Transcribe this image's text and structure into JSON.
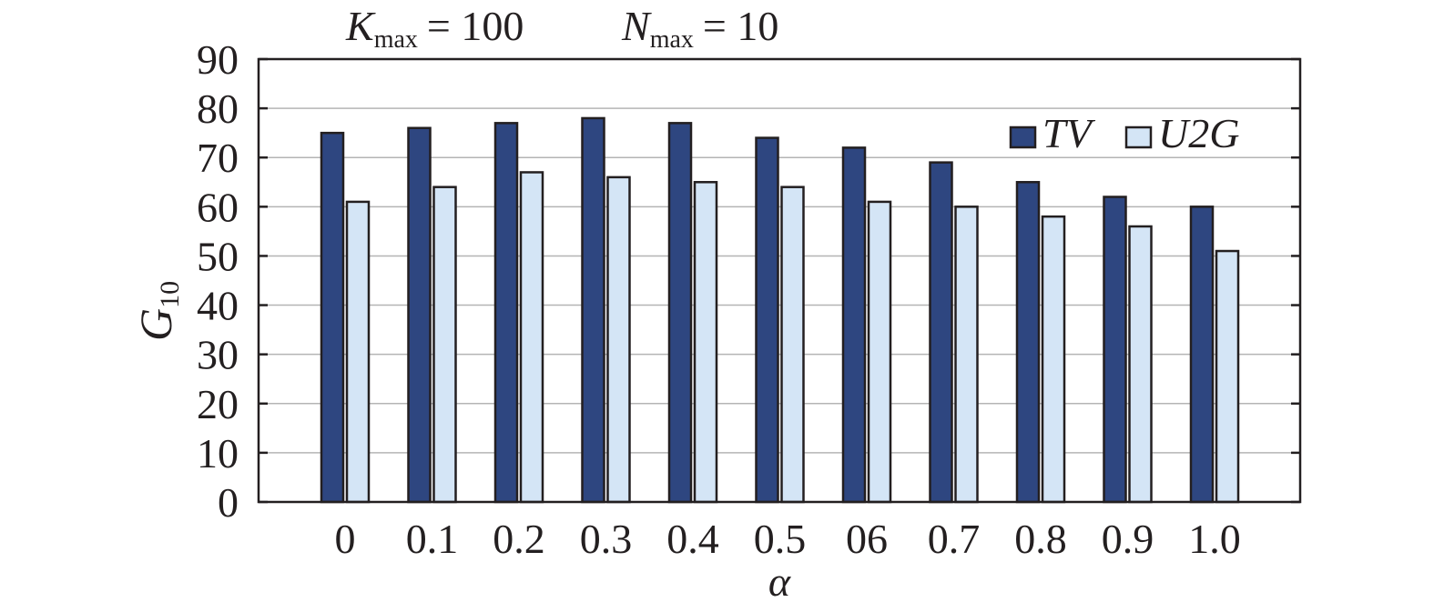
{
  "chart_data": {
    "type": "bar",
    "title": {
      "k_symbol": "K",
      "k_sub": "max",
      "k_value": "= 100",
      "n_symbol": "N",
      "n_sub": "max",
      "n_value": "= 10"
    },
    "xlabel": "α",
    "ylabel": {
      "symbol": "G",
      "sub": "10"
    },
    "categories": [
      "0",
      "0.1",
      "0.2",
      "0.3",
      "0.4",
      "0.5",
      "06",
      "0.7",
      "0.8",
      "0.9",
      "1.0"
    ],
    "series": [
      {
        "name": "TV",
        "color": "#2e4680",
        "values": [
          75,
          76,
          77,
          78,
          77,
          74,
          72,
          69,
          65,
          62,
          60
        ]
      },
      {
        "name": "U2G",
        "color": "#d4e5f6",
        "values": [
          61,
          64,
          67,
          66,
          65,
          64,
          61,
          60,
          58,
          56,
          51
        ]
      }
    ],
    "ylim": [
      0,
      90
    ],
    "yticks": [
      "0",
      "10",
      "20",
      "30",
      "40",
      "50",
      "60",
      "70",
      "80",
      "90"
    ],
    "grid": true,
    "legend": "top-right"
  }
}
